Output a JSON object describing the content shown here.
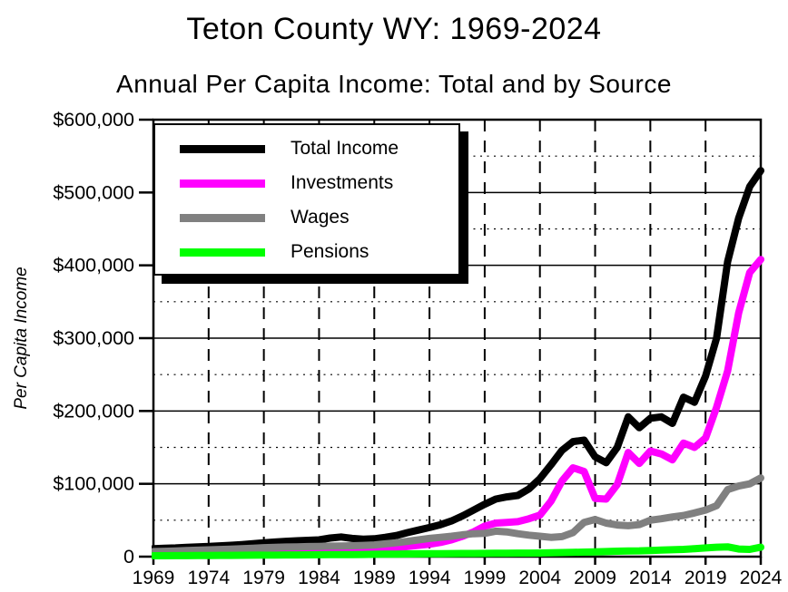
{
  "title": "Teton County WY: 1969-2024",
  "subtitle": "Annual Per Capita Income: Total and by Source",
  "y_axis": {
    "label": "Per Capita Income",
    "ticks": [
      {
        "label": "$600,000",
        "value": 600000
      },
      {
        "label": "$500,000",
        "value": 500000
      },
      {
        "label": "$400,000",
        "value": 400000
      },
      {
        "label": "$300,000",
        "value": 300000
      },
      {
        "label": "$200,000",
        "value": 200000
      },
      {
        "label": "$100,000",
        "value": 100000
      },
      {
        "label": "0",
        "value": 0
      }
    ]
  },
  "x_axis": {
    "ticks": [
      {
        "label": "1969",
        "year": 1969
      },
      {
        "label": "1974",
        "year": 1974
      },
      {
        "label": "1979",
        "year": 1979
      },
      {
        "label": "1984",
        "year": 1984
      },
      {
        "label": "1989",
        "year": 1989
      },
      {
        "label": "1994",
        "year": 1994
      },
      {
        "label": "1999",
        "year": 1999
      },
      {
        "label": "2004",
        "year": 2004
      },
      {
        "label": "2009",
        "year": 2009
      },
      {
        "label": "2014",
        "year": 2014
      },
      {
        "label": "2019",
        "year": 2019
      },
      {
        "label": "2024",
        "year": 2024
      }
    ]
  },
  "legend": [
    {
      "label": "Total Income",
      "color": "#000000"
    },
    {
      "label": "Investments",
      "color": "#ff00ff"
    },
    {
      "label": "Wages",
      "color": "#808080"
    },
    {
      "label": "Pensions",
      "color": "#00ff00"
    }
  ],
  "chart_data": {
    "type": "line",
    "title": "Teton County WY: 1969-2024",
    "subtitle": "Annual Per Capita Income: Total and by Source",
    "ylabel": "Per Capita Income",
    "units": "USD per capita",
    "xlim": [
      1969,
      2024
    ],
    "ylim": [
      0,
      600000
    ],
    "grid": {
      "h_solid_step": 100000,
      "h_dotted_step": 50000,
      "v_dashed_step_years": 5
    },
    "legend_position": "top-left",
    "x": [
      1969,
      1970,
      1971,
      1972,
      1973,
      1974,
      1975,
      1976,
      1977,
      1978,
      1979,
      1980,
      1981,
      1982,
      1983,
      1984,
      1985,
      1986,
      1987,
      1988,
      1989,
      1990,
      1991,
      1992,
      1993,
      1994,
      1995,
      1996,
      1997,
      1998,
      1999,
      2000,
      2001,
      2002,
      2003,
      2004,
      2005,
      2006,
      2007,
      2008,
      2009,
      2010,
      2011,
      2012,
      2013,
      2014,
      2015,
      2016,
      2017,
      2018,
      2019,
      2020,
      2021,
      2022,
      2023,
      2024
    ],
    "series": [
      {
        "name": "Total Income",
        "color": "#000000",
        "values": [
          11000,
          11500,
          12000,
          12800,
          13400,
          14000,
          14800,
          15600,
          16500,
          17800,
          19000,
          20000,
          21000,
          21800,
          22400,
          23000,
          25500,
          27000,
          25000,
          24000,
          24500,
          26500,
          29000,
          33000,
          36500,
          40000,
          44000,
          49000,
          56000,
          64000,
          72000,
          79000,
          82000,
          84000,
          93000,
          107000,
          126000,
          146000,
          158000,
          160000,
          137000,
          129000,
          150000,
          192000,
          177000,
          190000,
          192000,
          183000,
          219000,
          212000,
          248000,
          300000,
          405000,
          465000,
          508000,
          530000
        ]
      },
      {
        "name": "Investments",
        "color": "#ff00ff",
        "values": [
          2500,
          2700,
          3000,
          3300,
          3600,
          3900,
          4300,
          4700,
          5100,
          5600,
          6100,
          6600,
          7200,
          7600,
          7900,
          8200,
          9500,
          11000,
          9000,
          9000,
          9800,
          11000,
          12500,
          14000,
          15500,
          17000,
          19500,
          23000,
          28000,
          34000,
          42000,
          46000,
          47000,
          48000,
          52000,
          57000,
          76000,
          104000,
          122000,
          117000,
          80000,
          79000,
          99000,
          143000,
          128000,
          145000,
          141000,
          133000,
          156000,
          150000,
          163000,
          205000,
          255000,
          335000,
          390000,
          408000
        ]
      },
      {
        "name": "Wages",
        "color": "#808080",
        "values": [
          7000,
          7400,
          7800,
          8300,
          8800,
          9300,
          9800,
          10300,
          10900,
          11600,
          12300,
          12800,
          13200,
          13500,
          13800,
          14100,
          14400,
          14700,
          15000,
          15400,
          16000,
          17500,
          19000,
          21000,
          23000,
          25000,
          26500,
          28000,
          30000,
          31500,
          32000,
          35000,
          34000,
          31500,
          29500,
          28000,
          26500,
          27500,
          33000,
          47000,
          51000,
          46000,
          43500,
          42500,
          44000,
          50000,
          52000,
          54500,
          56500,
          60000,
          64000,
          70000,
          92000,
          97000,
          100000,
          108000
        ]
      },
      {
        "name": "Pensions",
        "color": "#00ff00",
        "values": [
          1200,
          1300,
          1400,
          1400,
          1500,
          1600,
          1700,
          1800,
          1900,
          2000,
          2200,
          2300,
          2400,
          2400,
          2500,
          2600,
          2700,
          2800,
          2900,
          3000,
          3200,
          3400,
          3500,
          3700,
          3800,
          4000,
          4100,
          4200,
          4300,
          4400,
          4500,
          4600,
          4700,
          4800,
          4900,
          5000,
          5300,
          5600,
          5900,
          6200,
          6500,
          7000,
          7500,
          7800,
          8000,
          8500,
          9000,
          9500,
          10000,
          11000,
          12000,
          13000,
          13500,
          10500,
          10000,
          13000
        ]
      }
    ]
  }
}
